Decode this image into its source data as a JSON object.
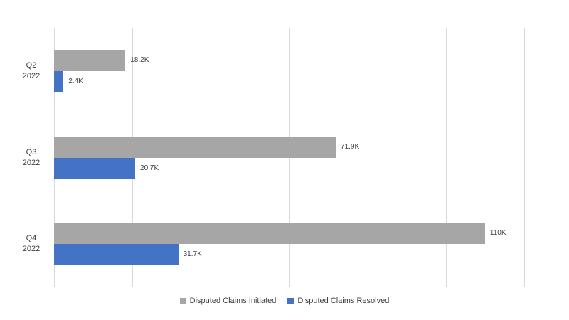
{
  "chart_data": {
    "type": "bar",
    "orientation": "horizontal",
    "title": "",
    "categories": [
      "Q2 2022",
      "Q3 2022",
      "Q4 2022"
    ],
    "category_label_lines": [
      [
        "Q2",
        "2022"
      ],
      [
        "Q3",
        "2022"
      ],
      [
        "Q4",
        "2022"
      ]
    ],
    "series": [
      {
        "name": "Disputed Claims Initiated",
        "color": "#a6a6a6",
        "values": [
          18200,
          71900,
          110000
        ],
        "data_labels": [
          "18.2K",
          "71.9K",
          "110K"
        ]
      },
      {
        "name": "Disputed Claims Resolved",
        "color": "#4472c4",
        "values": [
          2400,
          20700,
          31700
        ],
        "data_labels": [
          "2.4K",
          "20.7K",
          "31.7K"
        ]
      }
    ],
    "value_axis": {
      "min": 0,
      "max": 120000,
      "gridline_step": 20000,
      "tick_labels_visible": false
    },
    "grid": true,
    "legend_position": "bottom",
    "colors": {
      "gridline": "#d9d9d9",
      "text": "#404040",
      "background": "#ffffff"
    }
  }
}
